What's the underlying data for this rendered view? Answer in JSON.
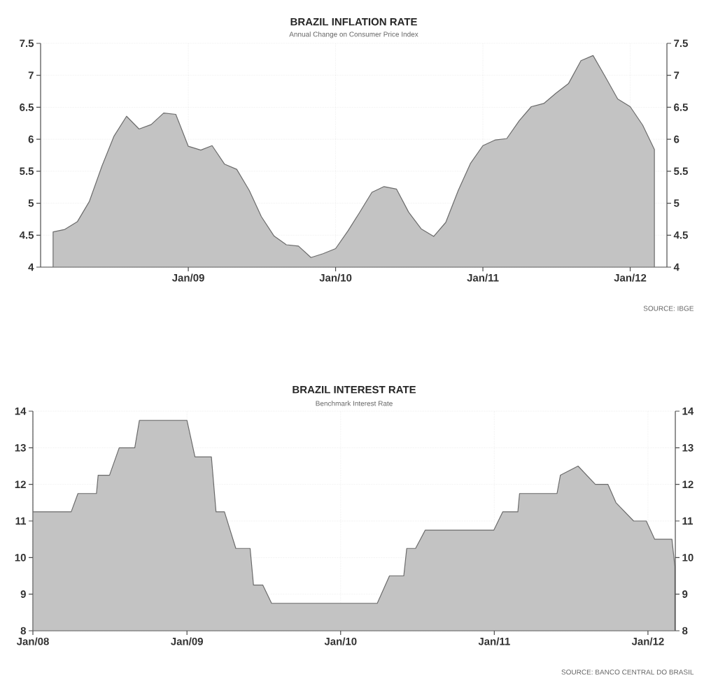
{
  "chart_data": [
    {
      "type": "area",
      "title": "BRAZIL INFLATION RATE",
      "subtitle": "Annual Change on Consumer Price Index",
      "color": "#c3c3c3",
      "grid": true,
      "x": [
        "2008-02",
        "2008-03",
        "2008-04",
        "2008-05",
        "2008-06",
        "2008-07",
        "2008-08",
        "2008-09",
        "2008-10",
        "2008-11",
        "2008-12",
        "2009-01",
        "2009-02",
        "2009-03",
        "2009-04",
        "2009-05",
        "2009-06",
        "2009-07",
        "2009-08",
        "2009-09",
        "2009-10",
        "2009-11",
        "2009-12",
        "2010-01",
        "2010-02",
        "2010-03",
        "2010-04",
        "2010-05",
        "2010-06",
        "2010-07",
        "2010-08",
        "2010-09",
        "2010-10",
        "2010-11",
        "2010-12",
        "2011-01",
        "2011-02",
        "2011-03",
        "2011-04",
        "2011-05",
        "2011-06",
        "2011-07",
        "2011-08",
        "2011-09",
        "2011-10",
        "2011-11",
        "2011-12",
        "2012-01",
        "2012-02",
        "2012-03"
      ],
      "values": [
        4.55,
        4.59,
        4.71,
        5.03,
        5.58,
        6.05,
        6.36,
        6.16,
        6.23,
        6.41,
        6.39,
        5.89,
        5.83,
        5.9,
        5.61,
        5.53,
        5.2,
        4.79,
        4.49,
        4.35,
        4.33,
        4.15,
        4.21,
        4.29,
        4.57,
        4.85,
        5.17,
        5.26,
        5.22,
        4.86,
        4.6,
        4.48,
        4.7,
        5.2,
        5.62,
        5.9,
        5.99,
        6.01,
        6.29,
        6.51,
        6.56,
        6.72,
        6.87,
        7.23,
        7.31,
        6.97,
        6.63,
        6.51,
        6.22,
        5.84
      ],
      "xlim": [
        "2008-01",
        "2012-04"
      ],
      "xticks": [
        {
          "value": "2009-01",
          "label": "Jan/09"
        },
        {
          "value": "2010-01",
          "label": "Jan/10"
        },
        {
          "value": "2011-01",
          "label": "Jan/11"
        },
        {
          "value": "2012-01",
          "label": "Jan/12"
        }
      ],
      "ylim": [
        4,
        7.5
      ],
      "yticks": [
        4,
        4.5,
        5,
        5.5,
        6,
        6.5,
        7,
        7.5
      ],
      "y2lim": [
        4,
        7.5
      ],
      "y2ticks": [
        4,
        4.5,
        5,
        5.5,
        6,
        6.5,
        7,
        7.5
      ],
      "annotations": [
        "SOURCE: IBGE"
      ]
    },
    {
      "type": "area",
      "title": "BRAZIL INTEREST RATE",
      "subtitle": "Benchmark Interest Rate",
      "color": "#c3c3c3",
      "grid": true,
      "x": [
        "2008-01-01",
        "2008-04-01",
        "2008-04-17",
        "2008-05-31",
        "2008-06-04",
        "2008-07-01",
        "2008-07-24",
        "2008-08-30",
        "2008-09-10",
        "2009-01-01",
        "2009-01-20",
        "2009-02-28",
        "2009-03-11",
        "2009-03-31",
        "2009-04-27",
        "2009-05-31",
        "2009-06-08",
        "2009-06-30",
        "2009-07-21",
        "2010-03-29",
        "2010-04-27",
        "2010-05-31",
        "2010-06-07",
        "2010-06-28",
        "2010-07-21",
        "2010-12-31",
        "2011-01-21",
        "2011-02-26",
        "2011-03-02",
        "2011-05-30",
        "2011-06-07",
        "2011-07-19",
        "2011-08-29",
        "2011-09-28",
        "2011-10-17",
        "2011-11-28",
        "2011-12-28",
        "2012-01-17",
        "2012-02-27",
        "2012-03-05"
      ],
      "values": [
        11.25,
        11.25,
        11.75,
        11.75,
        12.25,
        12.25,
        13.0,
        13.0,
        13.75,
        13.75,
        12.75,
        12.75,
        11.25,
        11.25,
        10.25,
        10.25,
        9.25,
        9.25,
        8.75,
        8.75,
        9.5,
        9.5,
        10.25,
        10.25,
        10.75,
        10.75,
        11.25,
        11.25,
        11.75,
        11.75,
        12.25,
        12.5,
        12.0,
        12.0,
        11.5,
        11.0,
        11.0,
        10.5,
        10.5,
        9.75
      ],
      "xlim": [
        "2008-01-01",
        "2012-03-06"
      ],
      "xticks": [
        {
          "value": "2008-01-01",
          "label": "Jan/08"
        },
        {
          "value": "2009-01-01",
          "label": "Jan/09"
        },
        {
          "value": "2010-01-01",
          "label": "Jan/10"
        },
        {
          "value": "2011-01-01",
          "label": "Jan/11"
        },
        {
          "value": "2012-01-01",
          "label": "Jan/12"
        }
      ],
      "ylim": [
        8,
        14
      ],
      "yticks": [
        8,
        9,
        10,
        11,
        12,
        13,
        14
      ],
      "y2lim": [
        8,
        14
      ],
      "y2ticks": [
        8,
        9,
        10,
        11,
        12,
        13,
        14
      ],
      "annotations": [
        "SOURCE: BANCO CENTRAL DO BRASIL"
      ]
    }
  ]
}
